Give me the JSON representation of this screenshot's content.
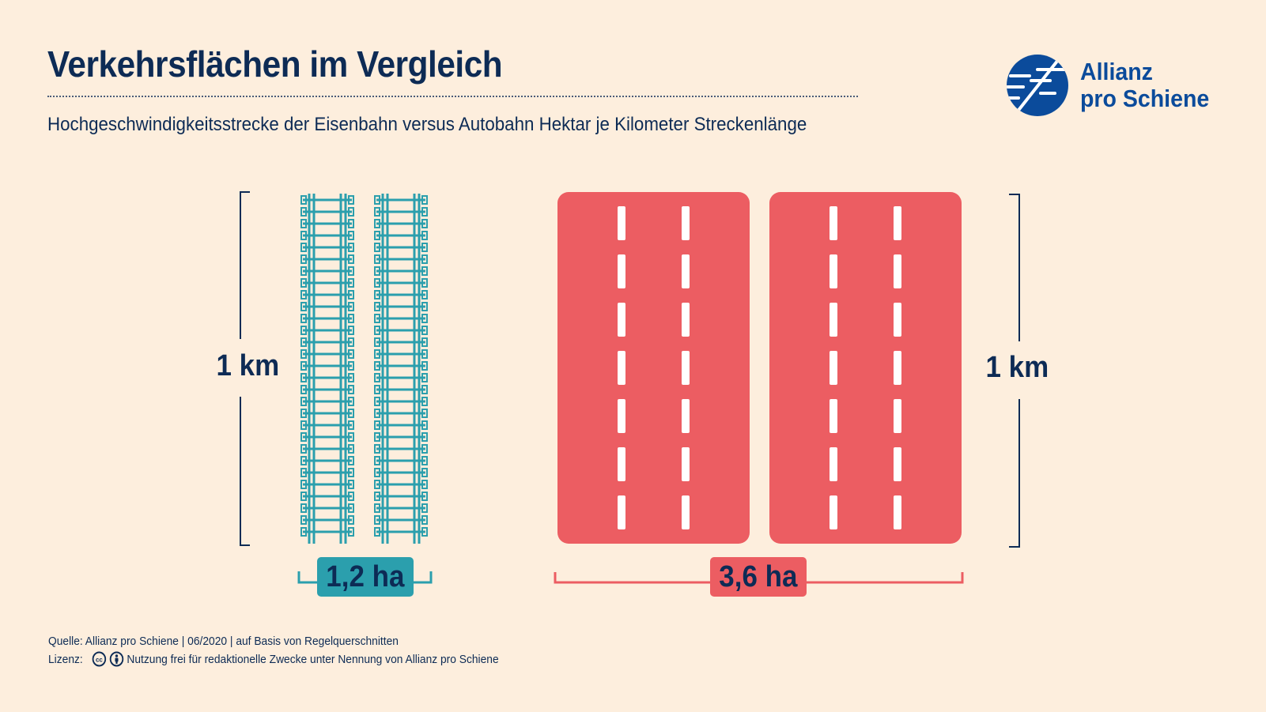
{
  "header": {
    "title": "Verkehrsflächen im Vergleich",
    "subtitle": "Hochgeschwindigkeitsstrecke der Eisenbahn versus Autobahn Hektar je Kilometer Streckenlänge"
  },
  "logo": {
    "line1": "Allianz",
    "line2": "pro Schiene",
    "icon": "allianz-pro-schiene-logo-mark"
  },
  "rail": {
    "length_label": "1 km",
    "area_label": "1,2 ha",
    "tracks": 2,
    "color": "#2b9fad"
  },
  "road": {
    "length_label": "1 km",
    "area_label": "3,6 ha",
    "carriageways": 2,
    "lanes_per_carriageway": 3,
    "color": "#ec5d62"
  },
  "footer": {
    "source": "Quelle: Allianz pro Schiene | 06/2020 | auf Basis von Regelquerschnitten",
    "license_label": "Lizenz:",
    "license_text": "Nutzung frei für redaktionelle Zwecke unter Nennung von Allianz pro Schiene",
    "license_icons": [
      "creative-commons-icon",
      "attribution-icon"
    ]
  },
  "colors": {
    "background": "#fdeedd",
    "navy": "#0d2b55",
    "logo_blue": "#0b4b9b"
  }
}
